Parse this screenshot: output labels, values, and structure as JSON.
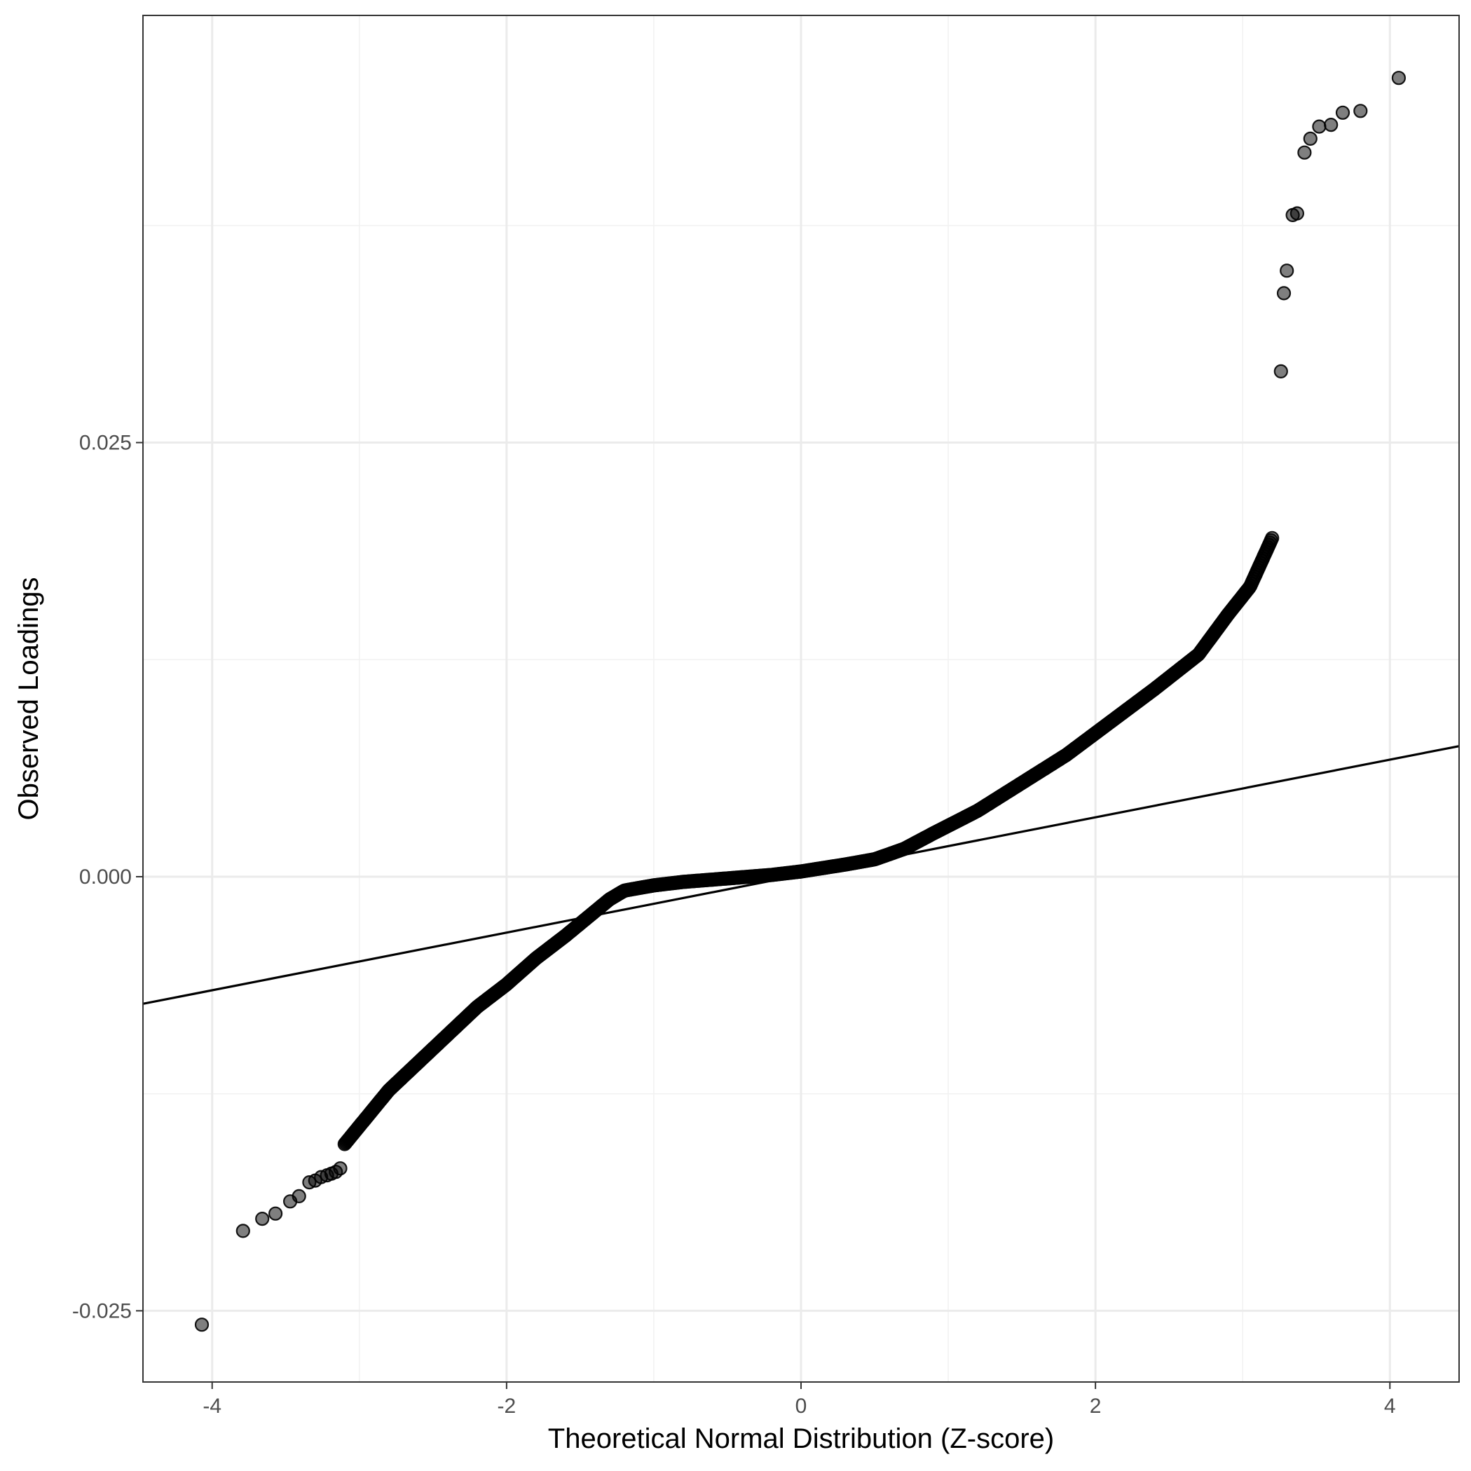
{
  "chart_data": {
    "type": "scatter",
    "title": "",
    "xlabel": "Theoretical Normal Distribution (Z-score)",
    "ylabel": "Observed Loadings",
    "xlim": [
      -4.47,
      4.47
    ],
    "ylim": [
      -0.0291,
      0.0496
    ],
    "grid": true,
    "legend": "none",
    "xticks": [
      {
        "value": -4,
        "label": "-4"
      },
      {
        "value": -2,
        "label": "-2"
      },
      {
        "value": 0,
        "label": "0"
      },
      {
        "value": 2,
        "label": "2"
      },
      {
        "value": 4,
        "label": "4"
      }
    ],
    "yticks": [
      {
        "value": -0.025,
        "label": "-0.025"
      },
      {
        "value": 0.0,
        "label": "0.000"
      },
      {
        "value": 0.025,
        "label": "0.025"
      }
    ],
    "reference_line": {
      "slope": 0.00166,
      "intercept": 0.0001
    },
    "colors": {
      "points": "#000000",
      "line": "#000000",
      "grid": "#ebebeb",
      "panel_border": "#333333"
    },
    "curve_profile": [
      [
        -3.1,
        -0.0154
      ],
      [
        -2.8,
        -0.0123
      ],
      [
        -2.5,
        -0.0099
      ],
      [
        -2.2,
        -0.0075
      ],
      [
        -2.0,
        -0.0062
      ],
      [
        -1.8,
        -0.0047
      ],
      [
        -1.6,
        -0.0034
      ],
      [
        -1.4,
        -0.002
      ],
      [
        -1.3,
        -0.0013
      ],
      [
        -1.2,
        -0.0008
      ],
      [
        -1.0,
        -0.0005
      ],
      [
        -0.8,
        -0.0003
      ],
      [
        -0.5,
        -0.0001
      ],
      [
        -0.2,
        0.0001
      ],
      [
        0.0,
        0.0003
      ],
      [
        0.3,
        0.0007
      ],
      [
        0.5,
        0.001
      ],
      [
        0.7,
        0.0016
      ],
      [
        0.9,
        0.0025
      ],
      [
        1.2,
        0.0038
      ],
      [
        1.5,
        0.0054
      ],
      [
        1.8,
        0.007
      ],
      [
        2.1,
        0.0089
      ],
      [
        2.4,
        0.0108
      ],
      [
        2.7,
        0.0128
      ],
      [
        2.9,
        0.0151
      ],
      [
        3.05,
        0.0167
      ],
      [
        3.2,
        0.0195
      ]
    ],
    "curve_points_count": 900,
    "tail_points": [
      [
        -4.07,
        -0.0258
      ],
      [
        -3.79,
        -0.0204
      ],
      [
        -3.66,
        -0.0197
      ],
      [
        -3.57,
        -0.0194
      ],
      [
        -3.47,
        -0.0187
      ],
      [
        -3.41,
        -0.0184
      ],
      [
        -3.34,
        -0.0176
      ],
      [
        -3.3,
        -0.0175
      ],
      [
        -3.26,
        -0.0173
      ],
      [
        -3.22,
        -0.0172
      ],
      [
        -3.19,
        -0.0171
      ],
      [
        -3.16,
        -0.017
      ],
      [
        -3.13,
        -0.0168
      ],
      [
        3.26,
        0.0291
      ],
      [
        3.28,
        0.0336
      ],
      [
        3.3,
        0.0349
      ],
      [
        3.34,
        0.0381
      ],
      [
        3.37,
        0.0382
      ],
      [
        3.42,
        0.0417
      ],
      [
        3.46,
        0.0425
      ],
      [
        3.52,
        0.0432
      ],
      [
        3.6,
        0.0433
      ],
      [
        3.68,
        0.044
      ],
      [
        3.8,
        0.0441
      ],
      [
        4.06,
        0.046
      ]
    ]
  }
}
